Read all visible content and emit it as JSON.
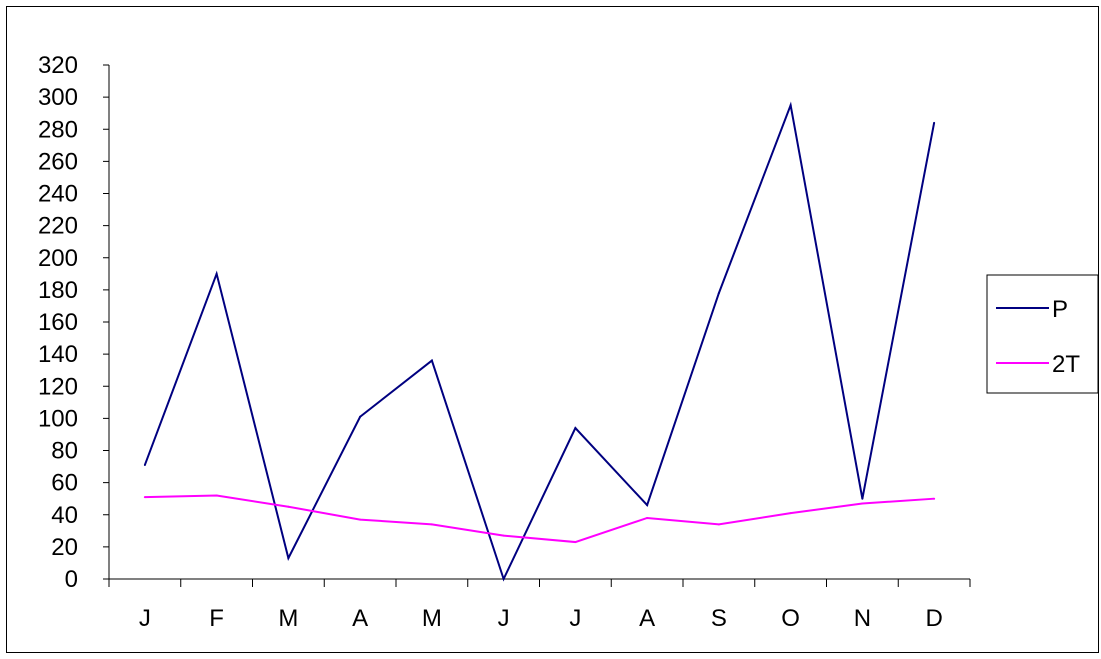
{
  "chart_data": {
    "type": "line",
    "categories": [
      "J",
      "F",
      "M",
      "A",
      "M",
      "J",
      "J",
      "A",
      "S",
      "O",
      "N",
      "D"
    ],
    "series": [
      {
        "name": "P",
        "color": "#000080",
        "values": [
          71,
          190,
          13,
          101,
          136,
          0,
          94,
          46,
          178,
          295,
          50,
          284
        ]
      },
      {
        "name": "2T",
        "color": "#FF00FF",
        "values": [
          51,
          52,
          45,
          37,
          34,
          27,
          23,
          38,
          34,
          41,
          47,
          50
        ]
      }
    ],
    "ylim": [
      0,
      320
    ],
    "yticks": [
      0,
      20,
      40,
      60,
      80,
      100,
      120,
      140,
      160,
      180,
      200,
      220,
      240,
      260,
      280,
      300,
      320
    ],
    "grid": false,
    "legend_position": "right"
  }
}
